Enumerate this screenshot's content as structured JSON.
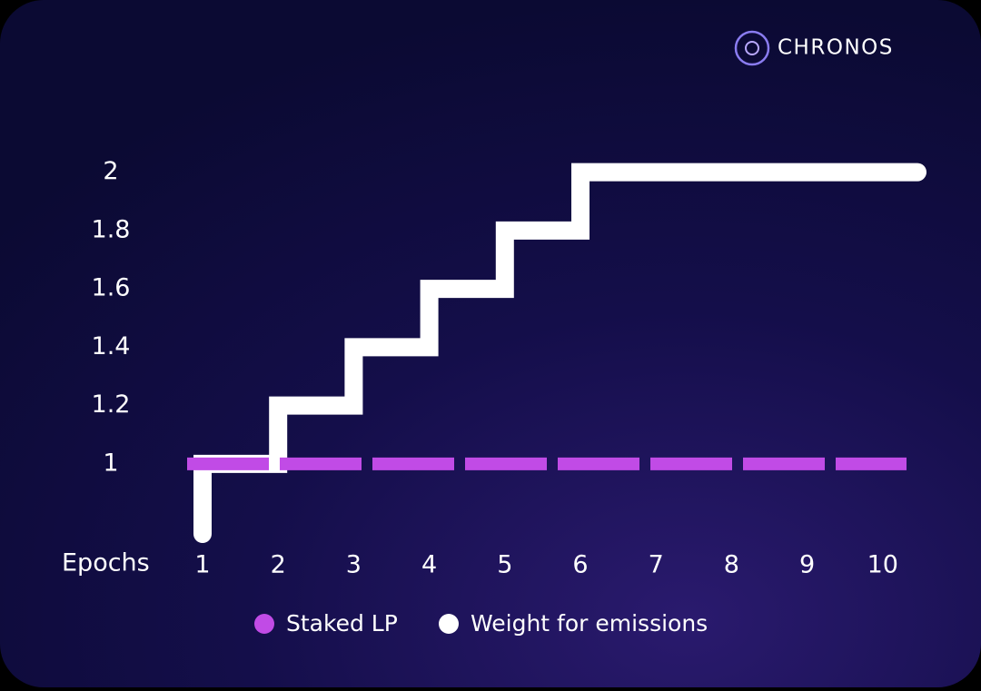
{
  "brand": "CHRONOS",
  "chart_data": {
    "type": "step",
    "x_label": "Epochs",
    "categories": [
      "1",
      "2",
      "3",
      "4",
      "5",
      "6",
      "7",
      "8",
      "9",
      "10"
    ],
    "series": [
      {
        "name": "Staked LP",
        "color": "#c14be6",
        "values": [
          1,
          1,
          1,
          1,
          1,
          1,
          1,
          1,
          1,
          1
        ],
        "dashed": true
      },
      {
        "name": "Weight for emissions",
        "color": "#ffffff",
        "values": [
          1,
          1.2,
          1.4,
          1.6,
          1.8,
          2,
          2,
          2,
          2,
          2
        ]
      }
    ],
    "ylim": [
      0.76,
      2.31
    ],
    "yticks": [
      1,
      1.2,
      1.4,
      1.6,
      1.8,
      2
    ]
  }
}
